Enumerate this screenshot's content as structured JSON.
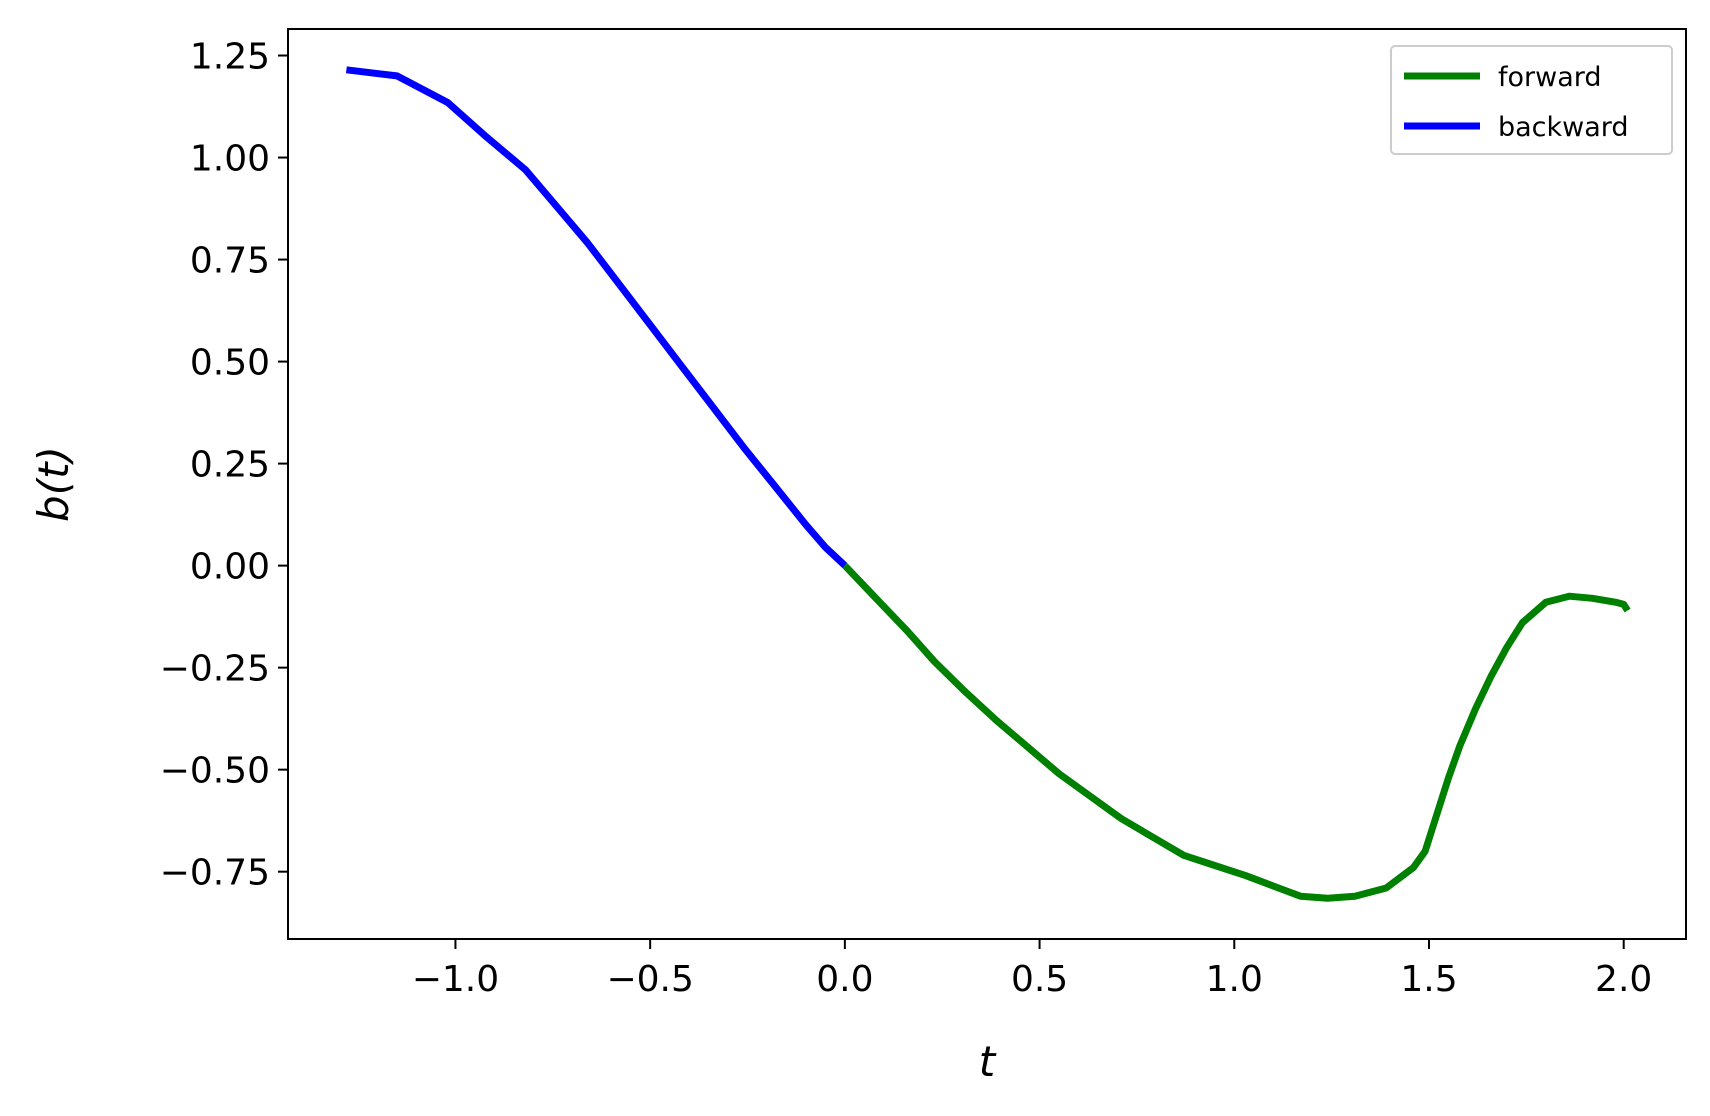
{
  "chart_data": {
    "type": "line",
    "xlabel": "t",
    "ylabel": "b(t)",
    "xlim": [
      -1.43,
      2.16
    ],
    "ylim": [
      -0.915,
      1.315
    ],
    "xticks": [
      -1.0,
      -0.5,
      0.0,
      0.5,
      1.0,
      1.5,
      2.0
    ],
    "xtick_labels": [
      "−1.0",
      "−0.5",
      "0.0",
      "0.5",
      "1.0",
      "1.5",
      "2.0"
    ],
    "yticks": [
      1.25,
      1.0,
      0.75,
      0.5,
      0.25,
      0.0,
      -0.25,
      -0.5,
      -0.75
    ],
    "ytick_labels": [
      "1.25",
      "1.00",
      "0.75",
      "0.50",
      "0.25",
      "0.00",
      "−0.25",
      "−0.50",
      "−0.75"
    ],
    "grid": false,
    "legend_position": "top-right",
    "series": [
      {
        "name": "forward",
        "color": "#008000",
        "x": [
          0.0,
          0.08,
          0.16,
          0.23,
          0.31,
          0.39,
          0.47,
          0.55,
          0.63,
          0.71,
          0.79,
          0.87,
          0.95,
          1.03,
          1.1,
          1.17,
          1.24,
          1.31,
          1.39,
          1.46,
          1.49,
          1.52,
          1.55,
          1.58,
          1.62,
          1.66,
          1.7,
          1.74,
          1.8,
          1.86,
          1.92,
          1.98,
          2.0,
          2.01
        ],
        "y": [
          0.0,
          -0.08,
          -0.16,
          -0.235,
          -0.31,
          -0.38,
          -0.445,
          -0.51,
          -0.565,
          -0.62,
          -0.665,
          -0.71,
          -0.735,
          -0.76,
          -0.785,
          -0.81,
          -0.815,
          -0.81,
          -0.79,
          -0.74,
          -0.7,
          -0.61,
          -0.52,
          -0.44,
          -0.35,
          -0.27,
          -0.2,
          -0.14,
          -0.09,
          -0.075,
          -0.08,
          -0.09,
          -0.095,
          -0.11
        ]
      },
      {
        "name": "backward",
        "color": "#0000ff",
        "x": [
          -1.28,
          -1.15,
          -1.02,
          -0.92,
          -0.82,
          -0.74,
          -0.66,
          -0.58,
          -0.5,
          -0.42,
          -0.34,
          -0.26,
          -0.18,
          -0.1,
          -0.05,
          0.0
        ],
        "y": [
          1.215,
          1.2,
          1.135,
          1.05,
          0.97,
          0.88,
          0.79,
          0.69,
          0.59,
          0.49,
          0.39,
          0.29,
          0.195,
          0.1,
          0.045,
          0.0
        ]
      }
    ]
  }
}
